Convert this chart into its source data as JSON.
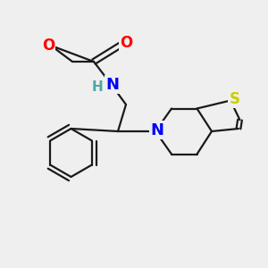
{
  "bg_color": "#efefef",
  "bond_color": "#1a1a1a",
  "atom_colors": {
    "O": "#ff0000",
    "N": "#0000ff",
    "H": "#4da6a6",
    "S": "#cccc00"
  },
  "font_size_atom": 11,
  "line_width": 1.6
}
